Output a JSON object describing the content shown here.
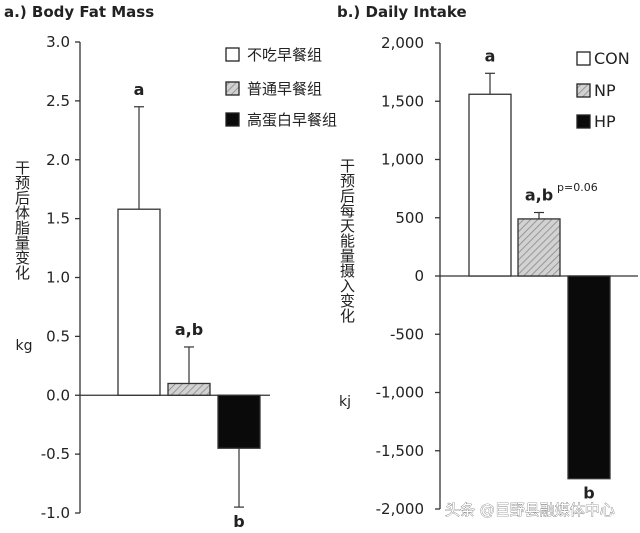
{
  "chart_data": [
    {
      "type": "bar",
      "title": "a.) Body Fat Mass",
      "ylabel": "干预后体脂量变化",
      "unit": "kg",
      "ylim": [
        -1.0,
        3.0
      ],
      "yticks": [
        3.0,
        2.5,
        2.0,
        1.5,
        1.0,
        0.5,
        0.0,
        -0.5,
        -1.0
      ],
      "yticklabels": [
        "3.0",
        "2.5",
        "2.0",
        "1.5",
        "1.0",
        "0.5",
        "0.0",
        "-0.5",
        "-1.0"
      ],
      "legend_position": "top-right",
      "series": [
        {
          "name": "不吃早餐组",
          "value": 1.58,
          "error": 0.87,
          "label": "a",
          "fill": "open"
        },
        {
          "name": "普通早餐组",
          "value": 0.1,
          "error": 0.31,
          "label": "a,b",
          "fill": "hatched"
        },
        {
          "name": "高蛋白早餐组",
          "value": -0.45,
          "error": 0.5,
          "label": "b",
          "fill": "solid"
        }
      ],
      "annotations": []
    },
    {
      "type": "bar",
      "title": "b.) Daily Intake",
      "ylabel": "干预后每天能量摄入变化",
      "unit": "kj",
      "ylim": [
        -2000,
        2000
      ],
      "yticks": [
        2000,
        1500,
        1000,
        500,
        0,
        -500,
        -1000,
        -1500,
        -2000
      ],
      "yticklabels": [
        "2,000",
        "1,500",
        "1,000",
        "500",
        "0",
        "-500",
        "-1,000",
        "-1,500",
        "-2,000"
      ],
      "legend_position": "top-right",
      "series": [
        {
          "name": "CON",
          "value": 1560,
          "error": 180,
          "label": "a",
          "fill": "open"
        },
        {
          "name": "NP",
          "value": 490,
          "error": 55,
          "label": "a,b",
          "fill": "hatched"
        },
        {
          "name": "HP",
          "value": -1740,
          "error": 0,
          "label": "b",
          "fill": "solid"
        }
      ],
      "annotations": [
        "p=0.06"
      ]
    }
  ],
  "watermark": "头条 @巨野县融媒体中心",
  "colors": {
    "axis": "#333333",
    "open_fill": "#ffffff",
    "hatch_fill": "#d2d2d2",
    "hatch_line": "#888888",
    "solid_fill": "#0a0a0a",
    "bar_stroke": "#333333",
    "watermark": "#ffffff"
  }
}
